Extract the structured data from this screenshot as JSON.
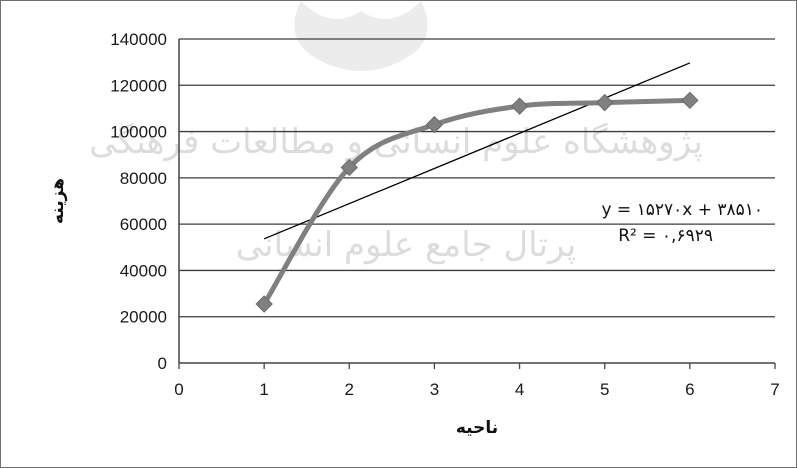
{
  "chart_data": {
    "type": "line",
    "title": "",
    "xlabel": "ناحیه",
    "ylabel": "هزینه",
    "xlim": [
      0,
      7
    ],
    "ylim": [
      0,
      140000
    ],
    "x_ticks": [
      "0",
      "1",
      "2",
      "3",
      "4",
      "5",
      "6",
      "7"
    ],
    "y_ticks": [
      "0",
      "20000",
      "40000",
      "60000",
      "80000",
      "100000",
      "120000",
      "140000"
    ],
    "grid": "horizontal",
    "legend": "none",
    "series": [
      {
        "x": [
          1,
          2,
          3,
          4,
          5,
          6
        ],
        "y": [
          25500,
          84500,
          103000,
          111000,
          112500,
          113500
        ],
        "color": "#808080",
        "marker": "diamond",
        "smooth": true
      }
    ],
    "trendline": {
      "type": "linear",
      "x_range": [
        1,
        6
      ],
      "color": "#000000",
      "equation_line1": "y = ۱۵۲۷۰x + ۳۸۵۱۰",
      "equation_line2": "R² = ۰,۶۹۲۹"
    },
    "watermark": {
      "line1": "پژوهشگاه علوم انسانی و مطالعات فرهنگی",
      "line2": "پرتال جامع علوم انسانی"
    }
  }
}
